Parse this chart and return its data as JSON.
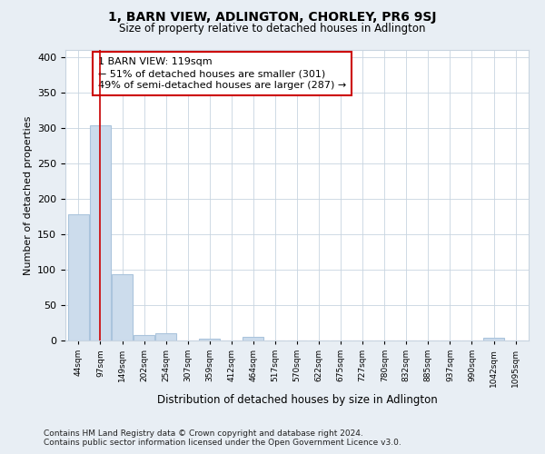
{
  "title": "1, BARN VIEW, ADLINGTON, CHORLEY, PR6 9SJ",
  "subtitle": "Size of property relative to detached houses in Adlington",
  "xlabel": "Distribution of detached houses by size in Adlington",
  "ylabel": "Number of detached properties",
  "bar_color": "#ccdcec",
  "bar_edge_color": "#aac4dc",
  "bins": [
    "44sqm",
    "97sqm",
    "149sqm",
    "202sqm",
    "254sqm",
    "307sqm",
    "359sqm",
    "412sqm",
    "464sqm",
    "517sqm",
    "570sqm",
    "622sqm",
    "675sqm",
    "727sqm",
    "780sqm",
    "832sqm",
    "885sqm",
    "937sqm",
    "990sqm",
    "1042sqm",
    "1095sqm"
  ],
  "counts": [
    178,
    304,
    93,
    8,
    10,
    0,
    3,
    0,
    5,
    0,
    0,
    0,
    0,
    0,
    0,
    0,
    0,
    0,
    0,
    4,
    0
  ],
  "vline_x_index": 1,
  "annotation_text": "1 BARN VIEW: 119sqm\n← 51% of detached houses are smaller (301)\n49% of semi-detached houses are larger (287) →",
  "annotation_color": "#cc0000",
  "ylim": [
    0,
    410
  ],
  "yticks": [
    0,
    50,
    100,
    150,
    200,
    250,
    300,
    350,
    400
  ],
  "footer": "Contains HM Land Registry data © Crown copyright and database right 2024.\nContains public sector information licensed under the Open Government Licence v3.0.",
  "background_color": "#e8eef4",
  "plot_background": "#ffffff",
  "grid_color": "#c8d4e0"
}
